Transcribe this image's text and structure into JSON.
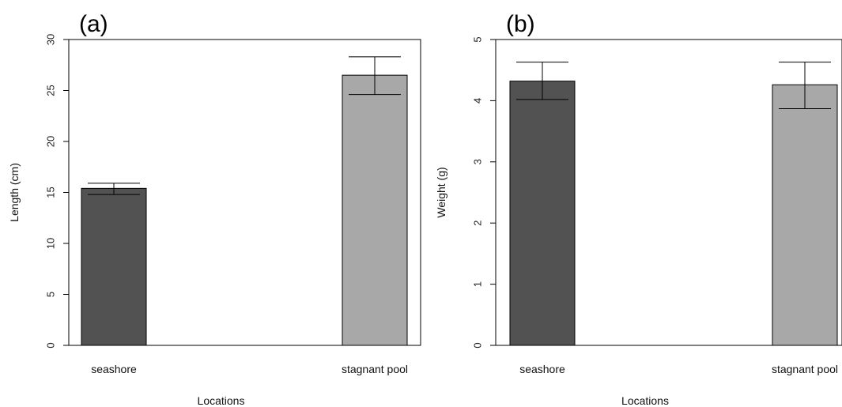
{
  "chart_data": [
    {
      "type": "bar",
      "panel_label": "(a)",
      "categories": [
        "seashore",
        "stagnant pool"
      ],
      "values": [
        15.4,
        26.5
      ],
      "error_low": [
        14.8,
        24.6
      ],
      "error_high": [
        15.9,
        28.3
      ],
      "bar_colors": [
        "#525252",
        "#a8a8a8"
      ],
      "xlabel": "Locations",
      "ylabel": "Length (cm)",
      "ylim": [
        0,
        30
      ],
      "yticks": [
        0,
        5,
        10,
        15,
        20,
        25,
        30
      ],
      "grid": false
    },
    {
      "type": "bar",
      "panel_label": "(b)",
      "categories": [
        "seashore",
        "stagnant pool"
      ],
      "values": [
        4.32,
        4.26
      ],
      "error_low": [
        4.02,
        3.87
      ],
      "error_high": [
        4.63,
        4.63
      ],
      "bar_colors": [
        "#525252",
        "#a8a8a8"
      ],
      "xlabel": "Locations",
      "ylabel": "Weight (g)",
      "ylim": [
        0,
        5
      ],
      "yticks": [
        0,
        1,
        2,
        3,
        4,
        5
      ],
      "grid": false
    }
  ]
}
